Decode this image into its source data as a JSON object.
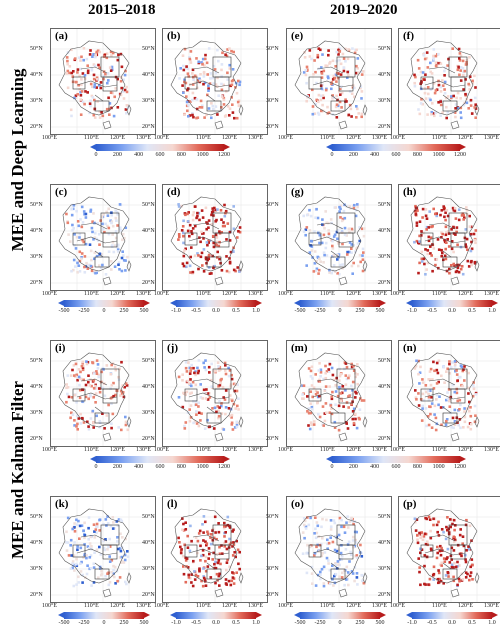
{
  "headers": [
    "2015–2018",
    "2019–2020"
  ],
  "row_labels": [
    "MEE and Deep Learning",
    "MEE and Kalman Filter"
  ],
  "panel_labels": [
    "(a)",
    "(b)",
    "(e)",
    "(f)",
    "(c)",
    "(d)",
    "(g)",
    "(h)",
    "(i)",
    "(j)",
    "(m)",
    "(n)",
    "(k)",
    "(l)",
    "(o)",
    "(p)"
  ],
  "lat_labels": [
    "50°N",
    "40°N",
    "30°N",
    "20°N"
  ],
  "lon_labels": [
    "100°E",
    "110°E",
    "120°E",
    "130°E"
  ],
  "colorbars": {
    "type1": [
      "0",
      "200",
      "400",
      "600",
      "800",
      "1000",
      "1200"
    ],
    "type2": [
      "-500",
      "-250",
      "0",
      "250",
      "500"
    ],
    "type3": [
      "-1.0",
      "-0.5",
      "0.0",
      "0.5",
      "1.0"
    ]
  },
  "colors": {
    "blue": "#2f5fd0",
    "white": "#eef1f8",
    "red": "#b71c1c"
  }
}
